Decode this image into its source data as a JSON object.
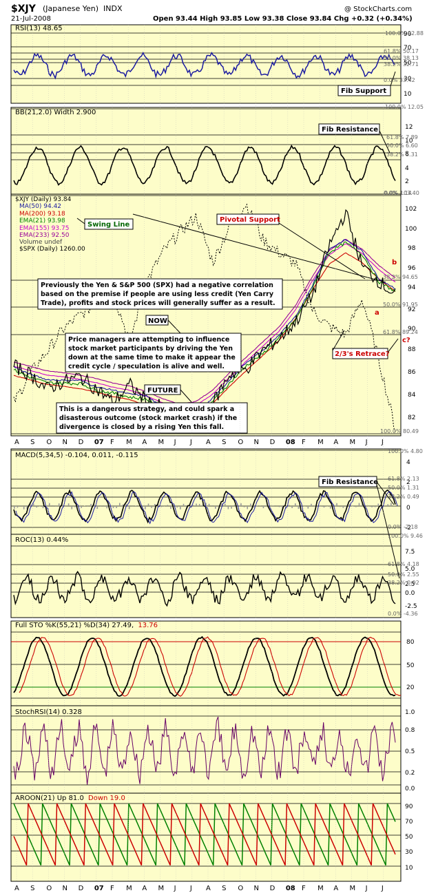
{
  "header": {
    "symbol": "$XJY",
    "name": "(Japanese Yen)",
    "exchange": "INDX",
    "date": "21-Jul-2008",
    "ohlc": "Open 93.44   High 93.85   Low 93.38   Close 93.84   Chg +0.32 (+0.34%)",
    "watermark": "@ StockCharts.com"
  },
  "colors": {
    "panel_bg": "#fdfdc9",
    "price": "#000000",
    "ma50": "#1a1aa0",
    "ma200": "#cc0000",
    "ema21": "#008000",
    "ema155": "#cc00cc",
    "ema233": "#990099",
    "spx": "#000000",
    "rsi": "#1a1aa0",
    "sto_d": "#cc0000",
    "stochrsi": "#660066",
    "aroon_up": "#008000",
    "aroon_down": "#cc0000",
    "annotation_red": "#cc0000",
    "annotation_green": "#006600"
  },
  "axis": {
    "months": [
      "A",
      "S",
      "O",
      "N",
      "D",
      "07",
      "F",
      "M",
      "A",
      "M",
      "J",
      "J",
      "A",
      "S",
      "O",
      "N",
      "D",
      "08",
      "F",
      "M",
      "A",
      "M",
      "J",
      "J"
    ]
  },
  "panels": {
    "rsi": {
      "title": "RSI(13) 48.65",
      "ticks": [
        "90",
        "70",
        "50",
        "30",
        "10"
      ],
      "fib_labels": [
        "100.0% 92.88",
        "61.8% 50.17",
        "50.0% 38.13",
        "38.2% 32.71",
        "0.0% 33.42"
      ],
      "callout": "Fib Support"
    },
    "bbw": {
      "title": "BB(21,2.0) Width 2.900",
      "ticks": [
        "12",
        "10",
        "8",
        "6",
        "4",
        "2"
      ],
      "fib_labels": [
        "100.0% 12.05",
        "61.8% 7.89",
        "50.0% 6.60",
        "38.2% 5.31",
        "0.0% 1.14"
      ],
      "callout": "Fib Resistance"
    },
    "price": {
      "legend": [
        "$XJY (Daily) 93.84",
        "MA(50) 94.42",
        "MA(200) 93.18",
        "EMA(21) 93.98",
        "EMA(155) 93.75",
        "EMA(233) 92.50",
        "Volume undef",
        "$SPX (Daily) 1260.00"
      ],
      "ticks": [
        "102",
        "100",
        "98",
        "96",
        "94",
        "92",
        "90",
        "88",
        "86",
        "84",
        "82"
      ],
      "fib_labels": [
        "0.0% 103.40",
        "38.2% 94.65",
        "50.0% 91.95",
        "61.8% 89.24",
        "100.0% 80.49"
      ],
      "swing_line": "Swing Line",
      "pivotal_support": "Pivotal Support",
      "label_a": "a",
      "label_b": "b",
      "label_c": "c?",
      "retrace": "2/3's Retrace?",
      "now": "NOW",
      "future": "FUTURE",
      "note1": [
        "Previously the Yen & S&P 500 (SPX) had a negative correlation",
        "based on the premise if people are using less credit (Yen Carry",
        "Trade), profits and stock prices will generally suffer as a result."
      ],
      "note2": [
        "Price managers are attempting to influence",
        "stock market participants by driving the Yen",
        "down at the same time to make it appear the",
        "credit cycle / speculation is alive and well."
      ],
      "note3": [
        "This is a dangerous strategy, and could spark a",
        "disasterous outcome (stock market crash) if the",
        "divergence is closed by a rising Yen this fall."
      ]
    },
    "macd": {
      "title": "MACD(5,34,5) -0.104, 0.011, -0.115",
      "ticks": [
        "4",
        "2",
        "0",
        "-2"
      ],
      "fib_labels": [
        "100.0% 4.80",
        "61.8% 2.13",
        "50.0% 1.31",
        "38.2% 0.49",
        "0.0% -2.18"
      ],
      "callout": "Fib Resistance"
    },
    "roc": {
      "title": "ROC(13) 0.44%",
      "ticks": [
        "7.5",
        "5.0",
        "2.5",
        "0.0",
        "-2.5"
      ],
      "fib_labels": [
        "100.0% 9.46",
        "61.8% 4.18",
        "50.0% 2.55",
        "38.2% 0.92",
        "0.0% -4.36"
      ]
    },
    "sto": {
      "title_main": "Full STO %K(55,21) %D(34) 27.49,",
      "title_d": "13.76",
      "ticks": [
        "80",
        "50",
        "20"
      ]
    },
    "stochrsi": {
      "title": "StochRSI(14) 0.328",
      "ticks": [
        "1.0",
        "0.8",
        "0.5",
        "0.2",
        "0.0"
      ]
    },
    "aroon": {
      "title_main": "AROON(21) Up 81.0",
      "title_down": "Down 19.0",
      "ticks": [
        "90",
        "70",
        "50",
        "30",
        "10"
      ]
    }
  },
  "chart_data": {
    "type": "line",
    "title": "$XJY (Japanese Yen) INDX",
    "subtitle": "21-Jul-2008",
    "x_labels": [
      "A",
      "S",
      "O",
      "N",
      "D",
      "07",
      "F",
      "M",
      "A",
      "M",
      "J",
      "J",
      "A",
      "S",
      "O",
      "N",
      "D",
      "08",
      "F",
      "M",
      "A",
      "M",
      "J",
      "J"
    ],
    "price_ylim": [
      81,
      103.4
    ],
    "series": [
      {
        "name": "$XJY (Daily)",
        "values": [
          87.0,
          86.2,
          84.8,
          85.5,
          86.0,
          84.8,
          83.5,
          85.2,
          83.6,
          83.0,
          81.8,
          81.6,
          83.4,
          86.2,
          86.7,
          88.5,
          89.6,
          91.3,
          93.8,
          98.5,
          101.8,
          96.6,
          95.2,
          93.8
        ]
      },
      {
        "name": "$SPX (Daily)",
        "values": [
          83.5,
          86.3,
          88.4,
          90.6,
          91.9,
          93.1,
          93.9,
          89.4,
          95.1,
          98.0,
          99.9,
          101.4,
          97.0,
          100.4,
          102.6,
          99.2,
          97.9,
          96.8,
          92.4,
          90.8,
          90.0,
          93.5,
          87.7,
          80.9
        ]
      }
    ],
    "indicator_latest": {
      "RSI(13)": 48.65,
      "BB(21,2.0) Width": 2.9,
      "MA(50)": 94.42,
      "MA(200)": 93.18,
      "EMA(21)": 93.98,
      "EMA(155)": 93.75,
      "EMA(233)": 92.5,
      "$SPX": 1260.0,
      "MACD(5,34,5)": [
        -0.104,
        0.011,
        -0.115
      ],
      "ROC(13)": 0.44,
      "Full STO %K(55,21) %D(34)": [
        27.49,
        13.76
      ],
      "StochRSI(14)": 0.328,
      "AROON(21) Up": 81.0,
      "AROON(21) Down": 19.0
    }
  }
}
